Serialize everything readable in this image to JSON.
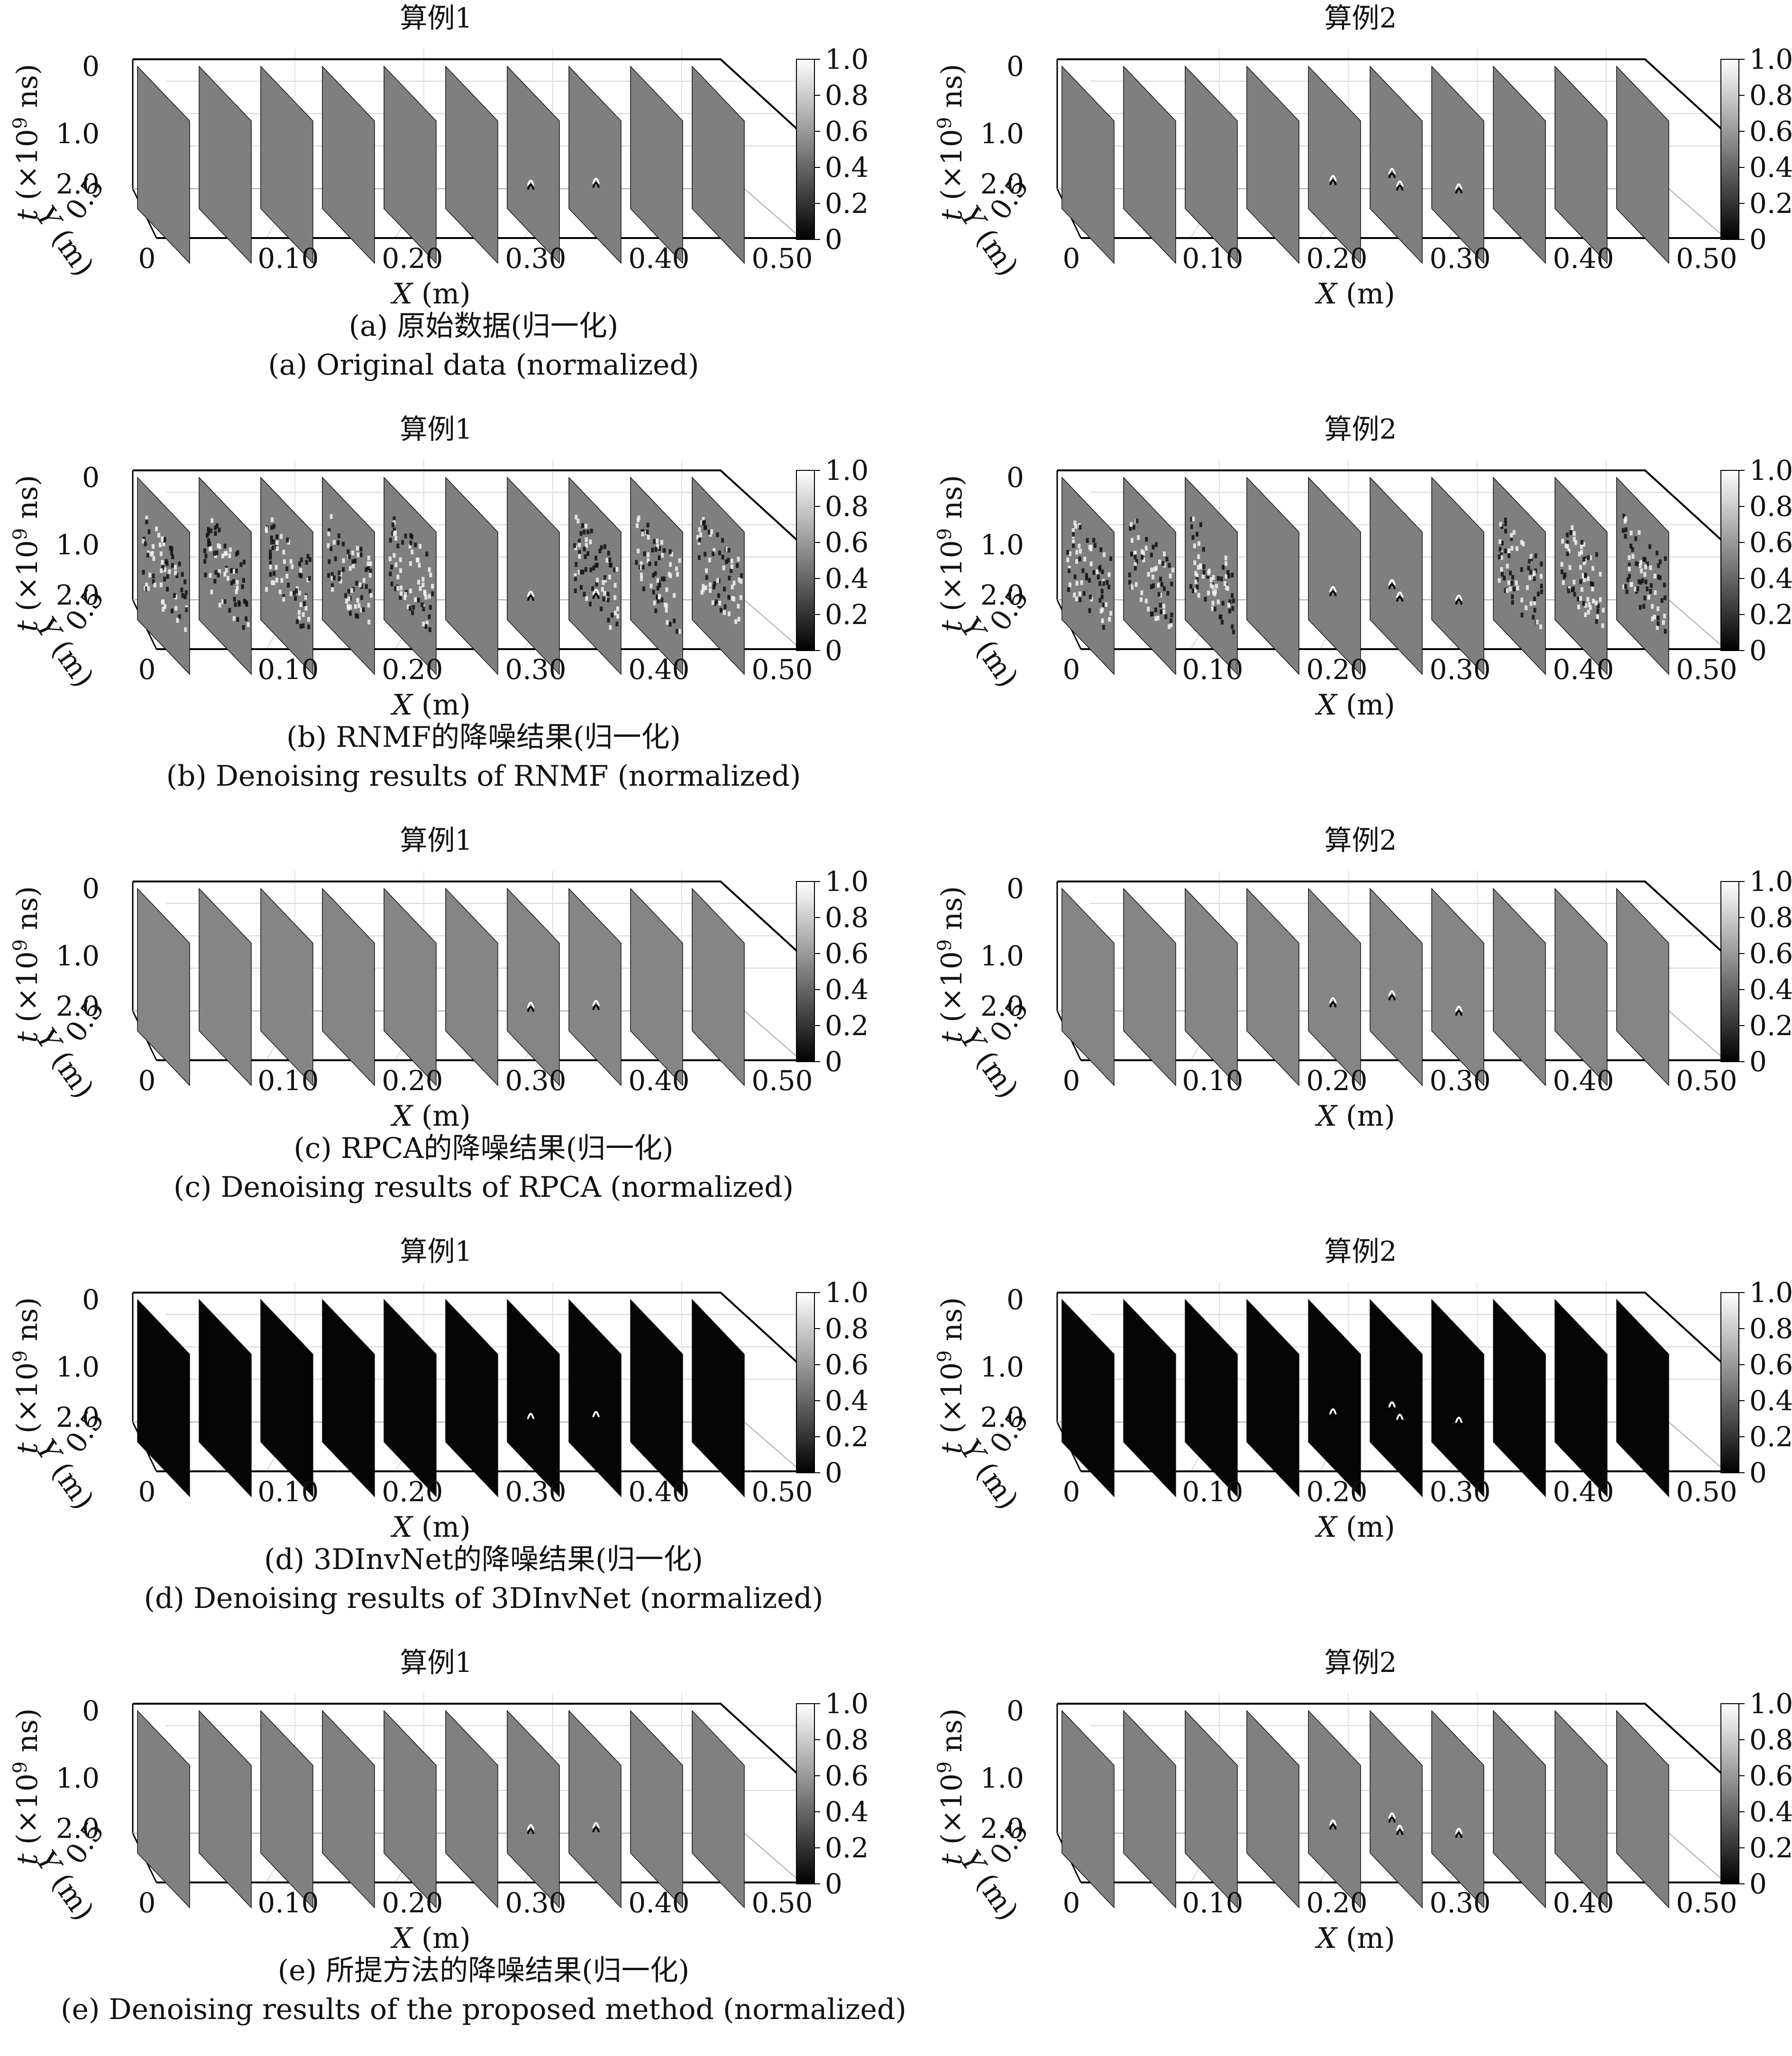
{
  "figure": {
    "rows": [
      {
        "id": "a",
        "bg": "#7f7f7f",
        "caption_cn": "(a) 原始数据(归一化)",
        "caption_en": "(a) Original data (normalized)",
        "noise": 0,
        "panels": [
          {
            "title": "算例1",
            "targets": [
              [
                6,
                0.45,
                0.62,
                "w"
              ],
              [
                7,
                0.52,
                0.58,
                "w"
              ]
            ]
          },
          {
            "title": "算例2",
            "targets": [
              [
                4,
                0.47,
                0.58,
                "w"
              ],
              [
                5,
                0.42,
                0.55,
                "w"
              ],
              [
                5,
                0.57,
                0.58,
                "w"
              ],
              [
                6,
                0.52,
                0.62,
                "w"
              ]
            ]
          }
        ]
      },
      {
        "id": "b",
        "bg": "#7f7f7f",
        "caption_cn": "(b) RNMF的降噪结果(归一化)",
        "caption_en": "(b) Denoising results of RNMF (normalized)",
        "noise": 1,
        "panels": [
          {
            "title": "算例1",
            "targets": [
              [
                6,
                0.45,
                0.62,
                "w"
              ],
              [
                7,
                0.52,
                0.58,
                "w"
              ]
            ]
          },
          {
            "title": "算例2",
            "targets": [
              [
                4,
                0.47,
                0.58,
                "w"
              ],
              [
                5,
                0.42,
                0.55,
                "w"
              ],
              [
                5,
                0.57,
                0.58,
                "w"
              ],
              [
                6,
                0.52,
                0.62,
                "w"
              ]
            ]
          }
        ]
      },
      {
        "id": "c",
        "bg": "#858585",
        "caption_cn": "(c) RPCA的降噪结果(归一化)",
        "caption_en": "(c) Denoising results of RPCA (normalized)",
        "noise": 0,
        "panels": [
          {
            "title": "算例1",
            "targets": [
              [
                6,
                0.45,
                0.62,
                "w"
              ],
              [
                7,
                0.52,
                0.58,
                "w"
              ]
            ]
          },
          {
            "title": "算例2",
            "targets": [
              [
                4,
                0.47,
                0.58,
                "w"
              ],
              [
                5,
                0.42,
                0.55,
                "w"
              ],
              [
                6,
                0.52,
                0.62,
                "w"
              ]
            ]
          }
        ]
      },
      {
        "id": "d",
        "bg": "#050505",
        "caption_cn": "(d) 3DInvNet的降噪结果(归一化)",
        "caption_en": "(d) Denoising results of 3DInvNet (normalized)",
        "noise": 0,
        "panels": [
          {
            "title": "算例1",
            "targets": [
              [
                6,
                0.45,
                0.62,
                "w"
              ],
              [
                7,
                0.52,
                0.58,
                "w"
              ]
            ]
          },
          {
            "title": "算例2",
            "targets": [
              [
                4,
                0.47,
                0.58,
                "w"
              ],
              [
                5,
                0.42,
                0.55,
                "w"
              ],
              [
                5,
                0.57,
                0.58,
                "w"
              ],
              [
                6,
                0.52,
                0.62,
                "w"
              ]
            ]
          }
        ]
      },
      {
        "id": "e",
        "bg": "#808080",
        "caption_cn": "(e) 所提方法的降噪结果(归一化)",
        "caption_en": "(e) Denoising results of the proposed method (normalized)",
        "noise": 0,
        "panels": [
          {
            "title": "算例1",
            "targets": [
              [
                6,
                0.45,
                0.62,
                "w"
              ],
              [
                7,
                0.52,
                0.58,
                "w"
              ]
            ]
          },
          {
            "title": "算例2",
            "targets": [
              [
                4,
                0.47,
                0.58,
                "w"
              ],
              [
                5,
                0.42,
                0.55,
                "w"
              ],
              [
                5,
                0.57,
                0.58,
                "w"
              ],
              [
                6,
                0.52,
                0.62,
                "w"
              ]
            ]
          }
        ]
      }
    ],
    "axes": {
      "x_ticks": [
        "0",
        "0.10",
        "0.20",
        "0.30",
        "0.40",
        "0.50"
      ],
      "x_label_var": "X",
      "x_label_unit": " (m)",
      "y_label_var": "Y",
      "y_label_unit": " (m)",
      "y_tick": "0.5",
      "t_ticks": [
        "0",
        "1.0",
        "2.0"
      ],
      "t_label_var": "t",
      "t_label_unit_pre": " (×10",
      "t_label_exp": "9",
      "t_label_unit_post": " ns)"
    },
    "colorbar": {
      "ticks": [
        "1.0",
        "0.8",
        "0.6",
        "0.4",
        "0.2",
        "0"
      ],
      "colormap": "gray"
    },
    "slices_per_panel": 10
  }
}
